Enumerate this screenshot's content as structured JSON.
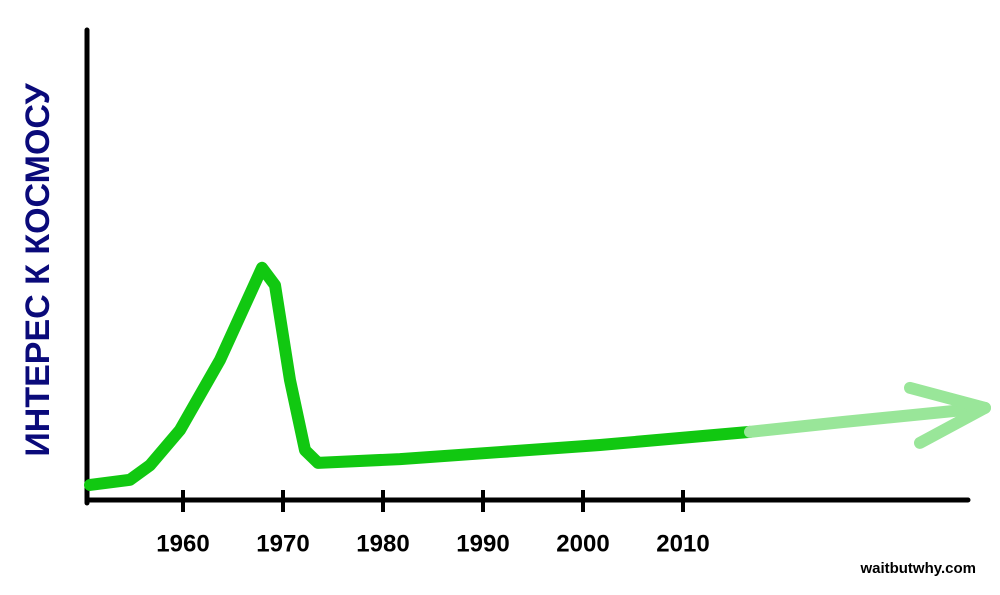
{
  "chart_data": {
    "type": "line",
    "ylabel": "ИНТЕРЕС К КОСМОСУ",
    "source": "waitbutwhy.com",
    "xlim": [
      1950.4,
      2041
    ],
    "ylim": [
      0,
      100
    ],
    "xticks": [
      1960,
      1970,
      1980,
      1990,
      2000,
      2010
    ],
    "axis_color": "#000000",
    "label_color": "#0a0a7a",
    "series": [
      {
        "color": "#11c811",
        "x": [
          1950.7,
          1954.7,
          1956.7,
          1959.7,
          1963.7,
          1967.9,
          1969.2,
          1970.7,
          1972.2,
          1973.5,
          1981.7,
          1991.7,
          2001.7,
          2016.7
        ],
        "values": [
          3.2,
          4.3,
          7.4,
          14.9,
          29.8,
          49.4,
          45.7,
          25.5,
          10.6,
          7.9,
          8.7,
          10.2,
          11.7,
          14.5
        ]
      },
      {
        "color": "#99e699",
        "x": [
          2016.7,
          2026,
          2040.2
        ],
        "values": [
          14.5,
          16.6,
          19.6
        ]
      }
    ]
  }
}
